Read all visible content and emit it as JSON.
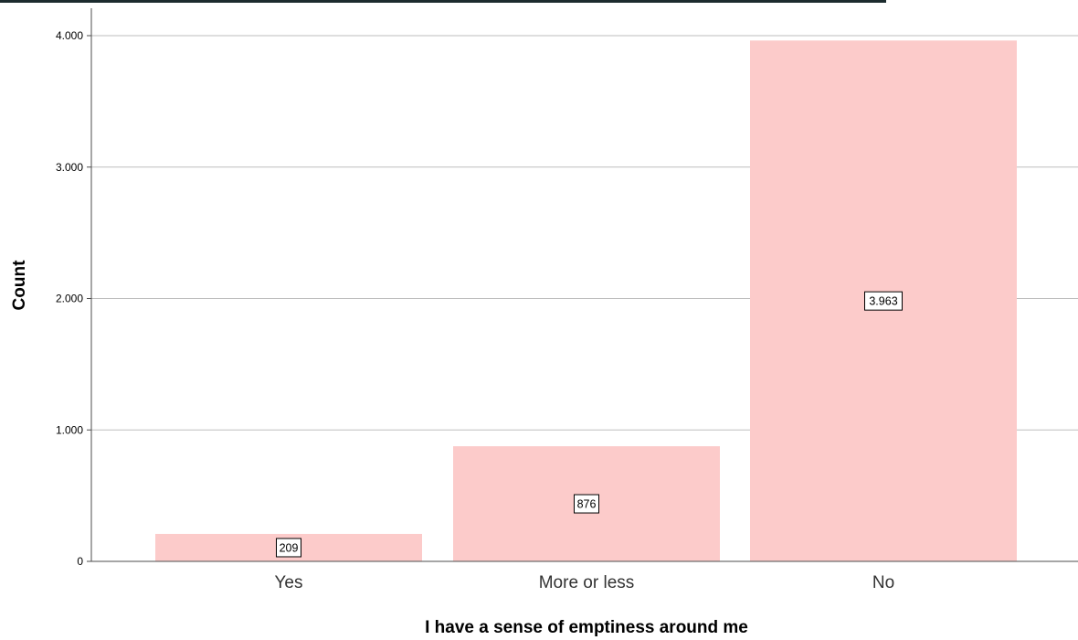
{
  "chart_data": {
    "type": "bar",
    "categories": [
      "Yes",
      "More or less",
      "No"
    ],
    "values": [
      209,
      876,
      3963
    ],
    "data_labels": [
      "209",
      "876",
      "3.963"
    ],
    "title": "",
    "xlabel": "I have a sense of emptiness around me",
    "ylabel": "Count",
    "ylim": [
      0,
      4000
    ],
    "yticks": [
      0,
      1000,
      2000,
      3000,
      4000
    ],
    "ytick_labels": [
      "0",
      "1.000",
      "2.000",
      "3.000",
      "4.000"
    ],
    "grid": true,
    "legend": "none"
  },
  "colors": {
    "bar_fill": "#fccbca",
    "gridline": "#bdbdbd",
    "axis": "#4d4d4d",
    "top_rule": "#1c2b2e"
  }
}
